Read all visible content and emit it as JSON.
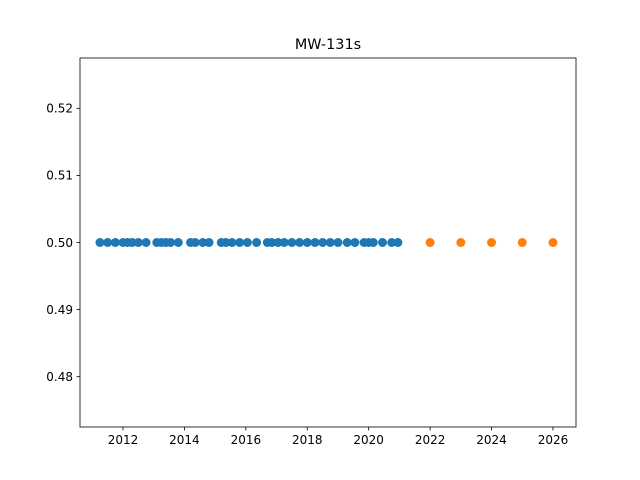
{
  "chart_data": {
    "type": "scatter",
    "title": "MW-131s",
    "xlabel": "",
    "ylabel": "",
    "xlim": [
      2010.6,
      2026.75
    ],
    "ylim": [
      0.4725,
      0.5275
    ],
    "x_ticks": [
      2012,
      2014,
      2016,
      2018,
      2020,
      2022,
      2024,
      2026
    ],
    "y_ticks": [
      0.48,
      0.49,
      0.5,
      0.51,
      0.52
    ],
    "x_tick_labels": [
      "2012",
      "2014",
      "2016",
      "2018",
      "2020",
      "2022",
      "2024",
      "2026"
    ],
    "y_tick_labels": [
      "0.48",
      "0.49",
      "0.50",
      "0.51",
      "0.52"
    ],
    "grid": false,
    "legend": "none",
    "series": [
      {
        "color": "#1f77b4",
        "x": [
          2011.25,
          2011.5,
          2011.75,
          2012.0,
          2012.15,
          2012.3,
          2012.5,
          2012.75,
          2013.1,
          2013.25,
          2013.4,
          2013.55,
          2013.8,
          2014.2,
          2014.35,
          2014.6,
          2014.8,
          2015.2,
          2015.35,
          2015.55,
          2015.8,
          2016.05,
          2016.35,
          2016.7,
          2016.85,
          2017.05,
          2017.25,
          2017.5,
          2017.75,
          2018.0,
          2018.25,
          2018.5,
          2018.75,
          2019.0,
          2019.3,
          2019.55,
          2019.85,
          2020.0,
          2020.15,
          2020.45,
          2020.75,
          2020.95
        ],
        "y": [
          0.5,
          0.5,
          0.5,
          0.5,
          0.5,
          0.5,
          0.5,
          0.5,
          0.5,
          0.5,
          0.5,
          0.5,
          0.5,
          0.5,
          0.5,
          0.5,
          0.5,
          0.5,
          0.5,
          0.5,
          0.5,
          0.5,
          0.5,
          0.5,
          0.5,
          0.5,
          0.5,
          0.5,
          0.5,
          0.5,
          0.5,
          0.5,
          0.5,
          0.5,
          0.5,
          0.5,
          0.5,
          0.5,
          0.5,
          0.5,
          0.5,
          0.5
        ]
      },
      {
        "color": "#ff7f0e",
        "x": [
          2022,
          2023,
          2024,
          2025,
          2026
        ],
        "y": [
          0.5,
          0.5,
          0.5,
          0.5,
          0.5
        ]
      }
    ]
  }
}
